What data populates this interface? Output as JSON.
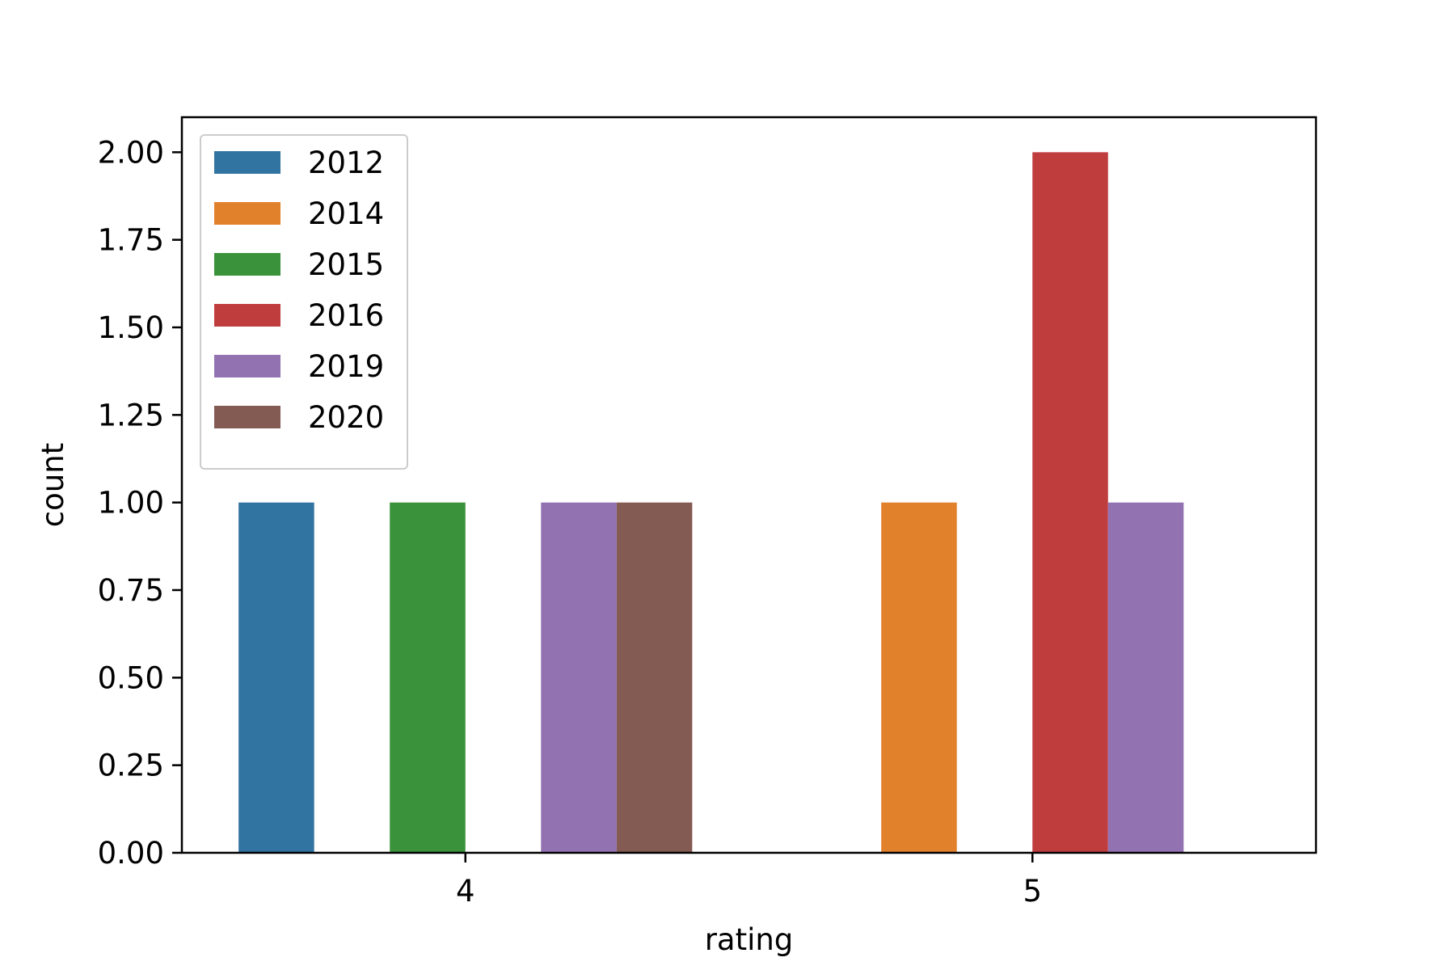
{
  "chart_data": {
    "type": "bar",
    "title": "",
    "xlabel": "rating",
    "ylabel": "count",
    "categories": [
      "4",
      "5"
    ],
    "series": [
      {
        "name": "2012",
        "color": "#3274a1",
        "values": [
          1,
          0
        ]
      },
      {
        "name": "2014",
        "color": "#e1812c",
        "values": [
          0,
          1
        ]
      },
      {
        "name": "2015",
        "color": "#3a923a",
        "values": [
          1,
          0
        ]
      },
      {
        "name": "2016",
        "color": "#c03d3e",
        "values": [
          0,
          2
        ]
      },
      {
        "name": "2019",
        "color": "#9372b2",
        "values": [
          1,
          1
        ]
      },
      {
        "name": "2020",
        "color": "#845b53",
        "values": [
          1,
          0
        ]
      }
    ],
    "ylim": [
      0,
      2.1
    ],
    "yticks": [
      "0.00",
      "0.25",
      "0.50",
      "0.75",
      "1.00",
      "1.25",
      "1.50",
      "1.75",
      "2.00"
    ],
    "grid": false,
    "legend_position": "top-left"
  }
}
